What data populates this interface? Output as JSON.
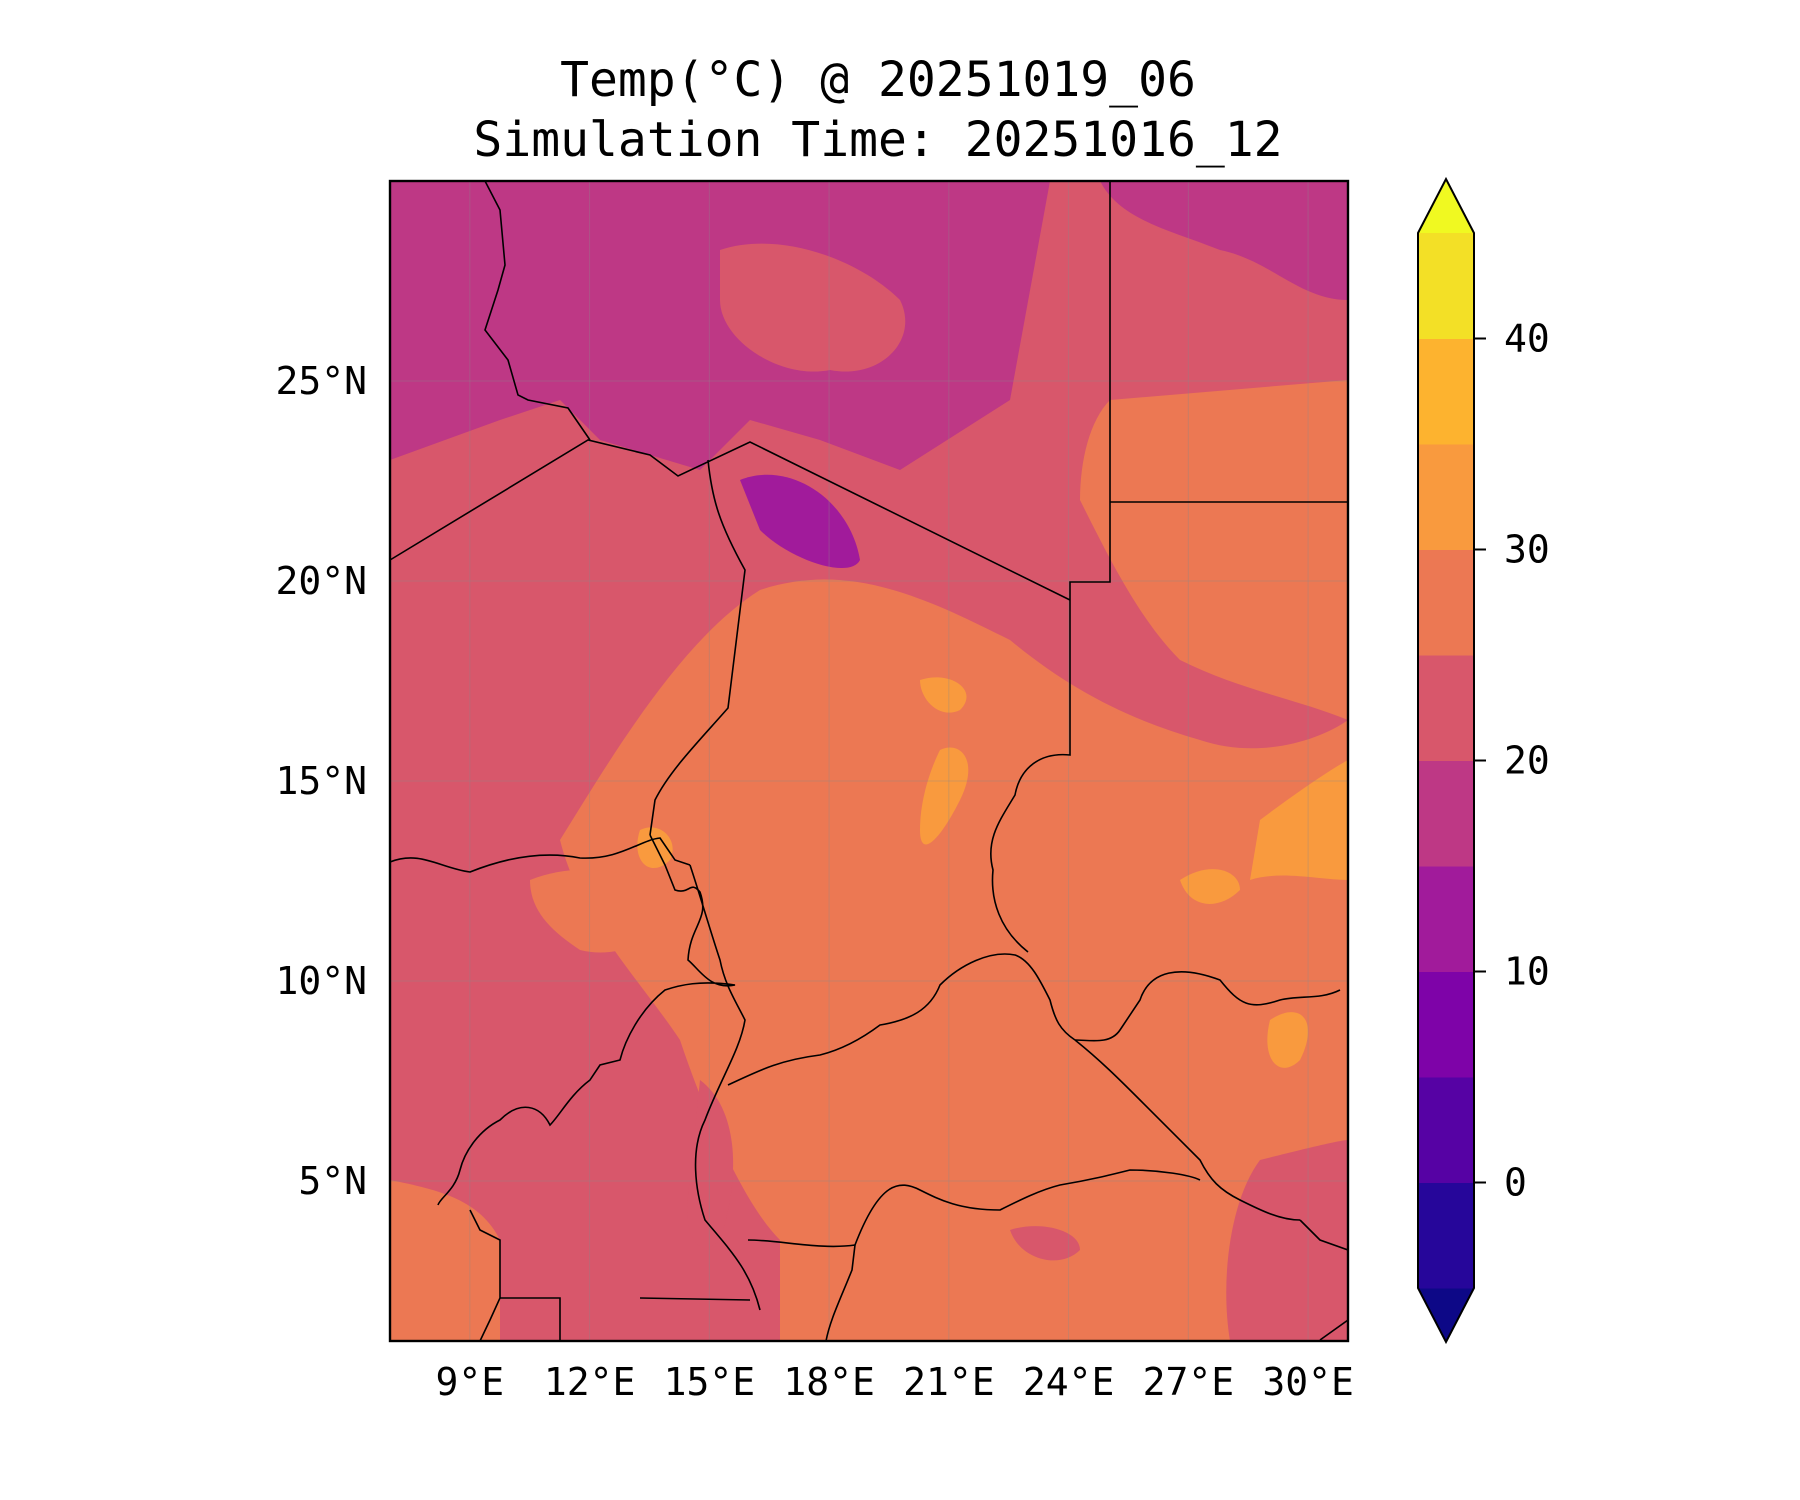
{
  "title": "Temp(°C) @ 20251019_06",
  "subtitle": "Simulation Time: 20251016_12",
  "map": {
    "lon_range": [
      7,
      31
    ],
    "lat_range": [
      1,
      30
    ],
    "x_ticks": [
      {
        "value": 9,
        "label": "9°E"
      },
      {
        "value": 12,
        "label": "12°E"
      },
      {
        "value": 15,
        "label": "15°E"
      },
      {
        "value": 18,
        "label": "18°E"
      },
      {
        "value": 21,
        "label": "21°E"
      },
      {
        "value": 24,
        "label": "24°E"
      },
      {
        "value": 27,
        "label": "27°E"
      },
      {
        "value": 30,
        "label": "30°E"
      }
    ],
    "y_ticks": [
      {
        "value": 5,
        "label": "5°N"
      },
      {
        "value": 10,
        "label": "10°N"
      },
      {
        "value": 15,
        "label": "15°N"
      },
      {
        "value": 20,
        "label": "20°N"
      },
      {
        "value": 25,
        "label": "25°N"
      }
    ],
    "grid": true,
    "colormap": "plasma"
  },
  "colorbar": {
    "levels": [
      -5,
      0,
      5,
      10,
      15,
      20,
      25,
      30,
      35,
      40,
      45
    ],
    "colors": [
      "#0d0887",
      "#26069a",
      "#5602a4",
      "#7e03a8",
      "#a11b9b",
      "#be3885",
      "#d8576b",
      "#ec7853",
      "#f99a3e",
      "#fdb32f",
      "#f3e026",
      "#f0f921"
    ],
    "extend": "both",
    "ticks": [
      {
        "value": 0,
        "label": "0"
      },
      {
        "value": 10,
        "label": "10"
      },
      {
        "value": 20,
        "label": "20"
      },
      {
        "value": 30,
        "label": "30"
      },
      {
        "value": 40,
        "label": "40"
      }
    ]
  }
}
